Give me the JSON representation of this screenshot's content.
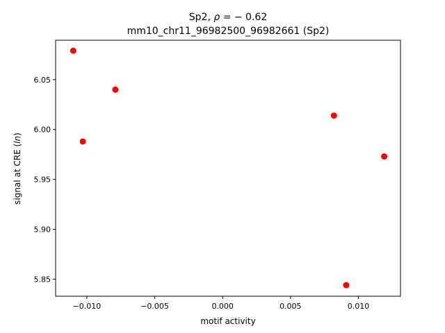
{
  "chart_data": {
    "type": "scatter",
    "title_line1_prefix": "Sp2, ",
    "title_rho_symbol": "ρ",
    "title_rho_value": " = − 0.62",
    "title_line2": "mm10_chr11_96982500_96982661 (Sp2)",
    "xlabel": "motif activity",
    "ylabel_prefix": "signal at CRE (",
    "ylabel_italic": "ln",
    "ylabel_suffix": ")",
    "xlim": [
      -0.0123,
      0.0131
    ],
    "ylim": [
      5.8329,
      6.0895
    ],
    "xticks": [
      -0.01,
      -0.005,
      0.0,
      0.005,
      0.01
    ],
    "xtick_labels": [
      "−0.010",
      "−0.005",
      "0.000",
      "0.005",
      "0.010"
    ],
    "yticks": [
      5.85,
      5.9,
      5.95,
      6.0,
      6.05
    ],
    "ytick_labels": [
      "5.85",
      "5.90",
      "5.95",
      "6.00",
      "6.05"
    ],
    "grid": false,
    "marker_color": "#ff0000",
    "points": [
      {
        "x": -0.011,
        "y": 6.079
      },
      {
        "x": -0.0103,
        "y": 5.988
      },
      {
        "x": -0.0079,
        "y": 6.04
      },
      {
        "x": 0.0082,
        "y": 6.014
      },
      {
        "x": 0.0091,
        "y": 5.844
      },
      {
        "x": 0.0119,
        "y": 5.973
      }
    ]
  }
}
